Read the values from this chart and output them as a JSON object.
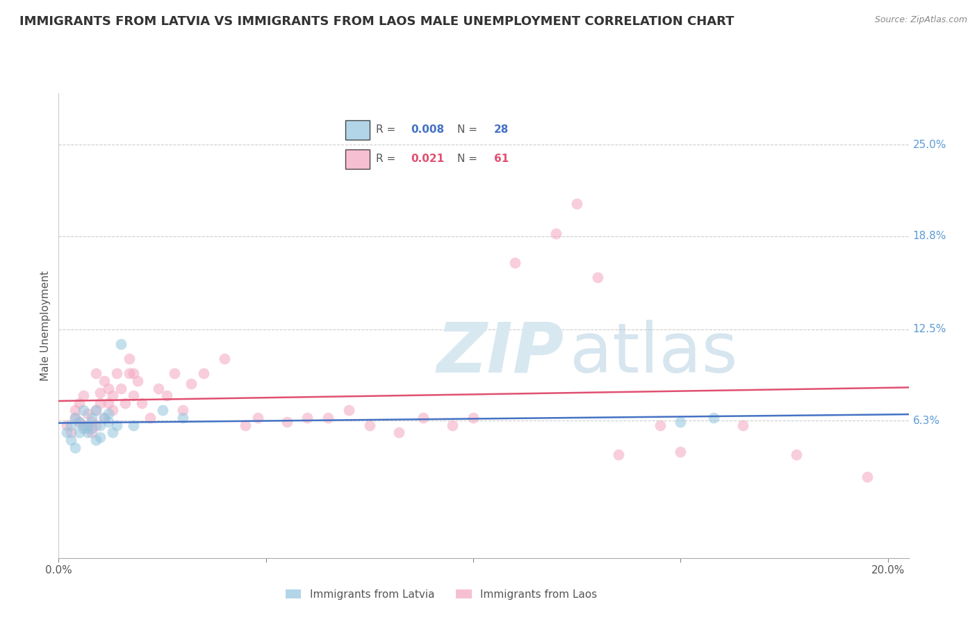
{
  "title": "IMMIGRANTS FROM LATVIA VS IMMIGRANTS FROM LAOS MALE UNEMPLOYMENT CORRELATION CHART",
  "source": "Source: ZipAtlas.com",
  "ylabel": "Male Unemployment",
  "xlim": [
    0.0,
    0.205
  ],
  "ylim": [
    -0.03,
    0.285
  ],
  "ytick_labels": [
    "25.0%",
    "18.8%",
    "12.5%",
    "6.3%"
  ],
  "ytick_values": [
    0.25,
    0.188,
    0.125,
    0.063
  ],
  "color_latvia": "#92c5de",
  "color_laos": "#f4a6c0",
  "trend_color_latvia": "#4472C4",
  "trend_color_laos": "#e05070",
  "latvia_r": "0.008",
  "latvia_n": "28",
  "laos_r": "0.021",
  "laos_n": "61",
  "latvia_x": [
    0.002,
    0.003,
    0.003,
    0.004,
    0.004,
    0.005,
    0.005,
    0.006,
    0.006,
    0.007,
    0.007,
    0.008,
    0.008,
    0.009,
    0.009,
    0.01,
    0.01,
    0.011,
    0.012,
    0.012,
    0.013,
    0.014,
    0.015,
    0.018,
    0.025,
    0.03,
    0.15,
    0.158
  ],
  "latvia_y": [
    0.055,
    0.06,
    0.05,
    0.065,
    0.045,
    0.062,
    0.055,
    0.07,
    0.058,
    0.06,
    0.055,
    0.065,
    0.058,
    0.07,
    0.05,
    0.06,
    0.052,
    0.065,
    0.062,
    0.068,
    0.055,
    0.06,
    0.115,
    0.06,
    0.07,
    0.065,
    0.062,
    0.065
  ],
  "laos_x": [
    0.002,
    0.003,
    0.004,
    0.004,
    0.005,
    0.005,
    0.006,
    0.006,
    0.007,
    0.007,
    0.008,
    0.008,
    0.009,
    0.009,
    0.009,
    0.01,
    0.01,
    0.011,
    0.011,
    0.012,
    0.012,
    0.013,
    0.013,
    0.014,
    0.015,
    0.016,
    0.017,
    0.017,
    0.018,
    0.018,
    0.019,
    0.02,
    0.022,
    0.024,
    0.026,
    0.028,
    0.03,
    0.032,
    0.035,
    0.04,
    0.045,
    0.048,
    0.055,
    0.06,
    0.065,
    0.07,
    0.075,
    0.082,
    0.088,
    0.095,
    0.1,
    0.11,
    0.12,
    0.125,
    0.13,
    0.135,
    0.145,
    0.15,
    0.165,
    0.178,
    0.195
  ],
  "laos_y": [
    0.06,
    0.055,
    0.065,
    0.07,
    0.062,
    0.075,
    0.06,
    0.08,
    0.058,
    0.068,
    0.062,
    0.055,
    0.07,
    0.06,
    0.095,
    0.075,
    0.082,
    0.065,
    0.09,
    0.085,
    0.075,
    0.07,
    0.08,
    0.095,
    0.085,
    0.075,
    0.095,
    0.105,
    0.08,
    0.095,
    0.09,
    0.075,
    0.065,
    0.085,
    0.08,
    0.095,
    0.07,
    0.088,
    0.095,
    0.105,
    0.06,
    0.065,
    0.062,
    0.065,
    0.065,
    0.07,
    0.06,
    0.055,
    0.065,
    0.06,
    0.065,
    0.17,
    0.19,
    0.21,
    0.16,
    0.04,
    0.06,
    0.042,
    0.06,
    0.04,
    0.025
  ]
}
